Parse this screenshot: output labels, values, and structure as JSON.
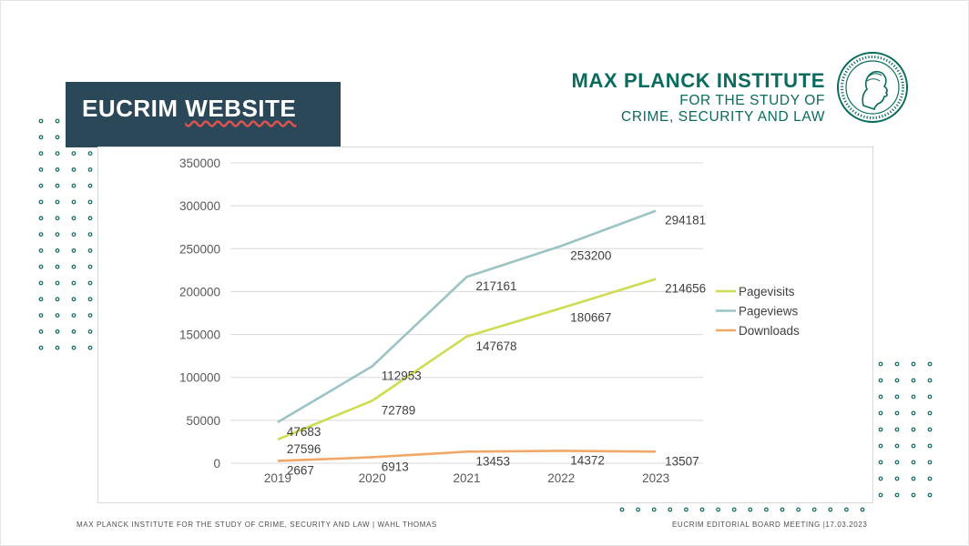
{
  "slide": {
    "title_part1": "EUCRIM",
    "title_part2": "WEBSITE",
    "logo_line1": "MAX PLANCK INSTITUTE",
    "logo_line2": "FOR THE STUDY OF",
    "logo_line3": "CRIME, SECURITY AND LAW",
    "footer_left": "MAX PLANCK INSTITUTE FOR THE STUDY OF CRIME, SECURITY AND LAW | WAHL THOMAS",
    "footer_right": "EUCRIM EDITORIAL BOARD MEETING |17.03.2023",
    "colors": {
      "title_box": "#2b4858",
      "brand": "#0b6b5e"
    }
  },
  "chart_data": {
    "type": "line",
    "categories": [
      "2019",
      "2020",
      "2021",
      "2022",
      "2023"
    ],
    "series": [
      {
        "name": "Pagevisits",
        "values": [
          27596,
          72789,
          147678,
          180667,
          214656
        ],
        "color": "#cfdc52"
      },
      {
        "name": "Pageviews",
        "values": [
          47683,
          112953,
          217161,
          253200,
          294181
        ],
        "color": "#9cc4c4"
      },
      {
        "name": "Downloads",
        "values": [
          2667,
          6913,
          13453,
          14372,
          13507
        ],
        "color": "#f0a868"
      }
    ],
    "ylim": [
      0,
      350000
    ],
    "yticks": [
      "0",
      "50000",
      "100000",
      "150000",
      "200000",
      "250000",
      "300000",
      "350000"
    ],
    "grid": true,
    "legend": "right"
  }
}
